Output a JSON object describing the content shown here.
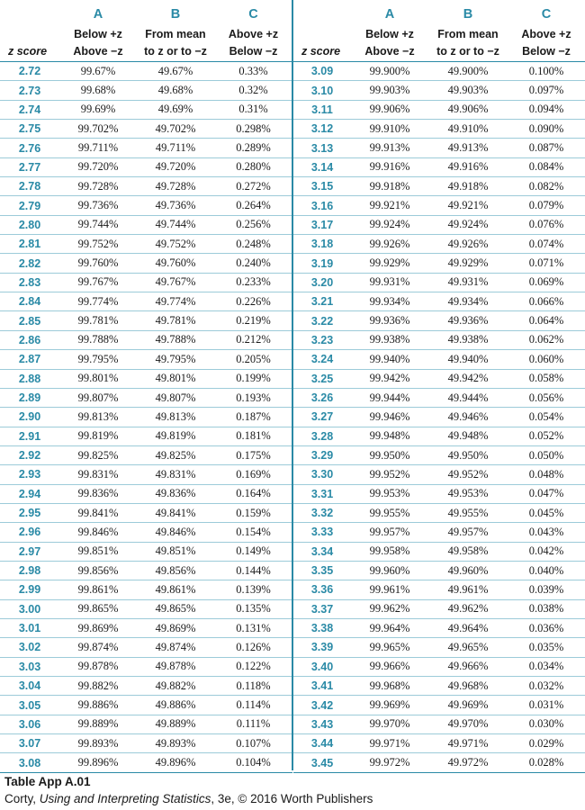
{
  "headers": {
    "z": "z score",
    "A": {
      "letter": "A",
      "line1": "Below +z",
      "line2": "Above −z"
    },
    "B": {
      "letter": "B",
      "line1": "From mean",
      "line2": "to z or to −z"
    },
    "C": {
      "letter": "C",
      "line1": "Above +z",
      "line2": "Below −z"
    }
  },
  "left_rows": [
    [
      "2.72",
      "99.67%",
      "49.67%",
      "0.33%"
    ],
    [
      "2.73",
      "99.68%",
      "49.68%",
      "0.32%"
    ],
    [
      "2.74",
      "99.69%",
      "49.69%",
      "0.31%"
    ],
    [
      "2.75",
      "99.702%",
      "49.702%",
      "0.298%"
    ],
    [
      "2.76",
      "99.711%",
      "49.711%",
      "0.289%"
    ],
    [
      "2.77",
      "99.720%",
      "49.720%",
      "0.280%"
    ],
    [
      "2.78",
      "99.728%",
      "49.728%",
      "0.272%"
    ],
    [
      "2.79",
      "99.736%",
      "49.736%",
      "0.264%"
    ],
    [
      "2.80",
      "99.744%",
      "49.744%",
      "0.256%"
    ],
    [
      "2.81",
      "99.752%",
      "49.752%",
      "0.248%"
    ],
    [
      "2.82",
      "99.760%",
      "49.760%",
      "0.240%"
    ],
    [
      "2.83",
      "99.767%",
      "49.767%",
      "0.233%"
    ],
    [
      "2.84",
      "99.774%",
      "49.774%",
      "0.226%"
    ],
    [
      "2.85",
      "99.781%",
      "49.781%",
      "0.219%"
    ],
    [
      "2.86",
      "99.788%",
      "49.788%",
      "0.212%"
    ],
    [
      "2.87",
      "99.795%",
      "49.795%",
      "0.205%"
    ],
    [
      "2.88",
      "99.801%",
      "49.801%",
      "0.199%"
    ],
    [
      "2.89",
      "99.807%",
      "49.807%",
      "0.193%"
    ],
    [
      "2.90",
      "99.813%",
      "49.813%",
      "0.187%"
    ],
    [
      "2.91",
      "99.819%",
      "49.819%",
      "0.181%"
    ],
    [
      "2.92",
      "99.825%",
      "49.825%",
      "0.175%"
    ],
    [
      "2.93",
      "99.831%",
      "49.831%",
      "0.169%"
    ],
    [
      "2.94",
      "99.836%",
      "49.836%",
      "0.164%"
    ],
    [
      "2.95",
      "99.841%",
      "49.841%",
      "0.159%"
    ],
    [
      "2.96",
      "99.846%",
      "49.846%",
      "0.154%"
    ],
    [
      "2.97",
      "99.851%",
      "49.851%",
      "0.149%"
    ],
    [
      "2.98",
      "99.856%",
      "49.856%",
      "0.144%"
    ],
    [
      "2.99",
      "99.861%",
      "49.861%",
      "0.139%"
    ],
    [
      "3.00",
      "99.865%",
      "49.865%",
      "0.135%"
    ],
    [
      "3.01",
      "99.869%",
      "49.869%",
      "0.131%"
    ],
    [
      "3.02",
      "99.874%",
      "49.874%",
      "0.126%"
    ],
    [
      "3.03",
      "99.878%",
      "49.878%",
      "0.122%"
    ],
    [
      "3.04",
      "99.882%",
      "49.882%",
      "0.118%"
    ],
    [
      "3.05",
      "99.886%",
      "49.886%",
      "0.114%"
    ],
    [
      "3.06",
      "99.889%",
      "49.889%",
      "0.111%"
    ],
    [
      "3.07",
      "99.893%",
      "49.893%",
      "0.107%"
    ],
    [
      "3.08",
      "99.896%",
      "49.896%",
      "0.104%"
    ]
  ],
  "right_rows": [
    [
      "3.09",
      "99.900%",
      "49.900%",
      "0.100%"
    ],
    [
      "3.10",
      "99.903%",
      "49.903%",
      "0.097%"
    ],
    [
      "3.11",
      "99.906%",
      "49.906%",
      "0.094%"
    ],
    [
      "3.12",
      "99.910%",
      "49.910%",
      "0.090%"
    ],
    [
      "3.13",
      "99.913%",
      "49.913%",
      "0.087%"
    ],
    [
      "3.14",
      "99.916%",
      "49.916%",
      "0.084%"
    ],
    [
      "3.15",
      "99.918%",
      "49.918%",
      "0.082%"
    ],
    [
      "3.16",
      "99.921%",
      "49.921%",
      "0.079%"
    ],
    [
      "3.17",
      "99.924%",
      "49.924%",
      "0.076%"
    ],
    [
      "3.18",
      "99.926%",
      "49.926%",
      "0.074%"
    ],
    [
      "3.19",
      "99.929%",
      "49.929%",
      "0.071%"
    ],
    [
      "3.20",
      "99.931%",
      "49.931%",
      "0.069%"
    ],
    [
      "3.21",
      "99.934%",
      "49.934%",
      "0.066%"
    ],
    [
      "3.22",
      "99.936%",
      "49.936%",
      "0.064%"
    ],
    [
      "3.23",
      "99.938%",
      "49.938%",
      "0.062%"
    ],
    [
      "3.24",
      "99.940%",
      "49.940%",
      "0.060%"
    ],
    [
      "3.25",
      "99.942%",
      "49.942%",
      "0.058%"
    ],
    [
      "3.26",
      "99.944%",
      "49.944%",
      "0.056%"
    ],
    [
      "3.27",
      "99.946%",
      "49.946%",
      "0.054%"
    ],
    [
      "3.28",
      "99.948%",
      "49.948%",
      "0.052%"
    ],
    [
      "3.29",
      "99.950%",
      "49.950%",
      "0.050%"
    ],
    [
      "3.30",
      "99.952%",
      "49.952%",
      "0.048%"
    ],
    [
      "3.31",
      "99.953%",
      "49.953%",
      "0.047%"
    ],
    [
      "3.32",
      "99.955%",
      "49.955%",
      "0.045%"
    ],
    [
      "3.33",
      "99.957%",
      "49.957%",
      "0.043%"
    ],
    [
      "3.34",
      "99.958%",
      "49.958%",
      "0.042%"
    ],
    [
      "3.35",
      "99.960%",
      "49.960%",
      "0.040%"
    ],
    [
      "3.36",
      "99.961%",
      "49.961%",
      "0.039%"
    ],
    [
      "3.37",
      "99.962%",
      "49.962%",
      "0.038%"
    ],
    [
      "3.38",
      "99.964%",
      "49.964%",
      "0.036%"
    ],
    [
      "3.39",
      "99.965%",
      "49.965%",
      "0.035%"
    ],
    [
      "3.40",
      "99.966%",
      "49.966%",
      "0.034%"
    ],
    [
      "3.41",
      "99.968%",
      "49.968%",
      "0.032%"
    ],
    [
      "3.42",
      "99.969%",
      "49.969%",
      "0.031%"
    ],
    [
      "3.43",
      "99.970%",
      "49.970%",
      "0.030%"
    ],
    [
      "3.44",
      "99.971%",
      "49.971%",
      "0.029%"
    ],
    [
      "3.45",
      "99.972%",
      "49.972%",
      "0.028%"
    ]
  ],
  "caption": "Table App A.01",
  "credit": {
    "author": "Corty, ",
    "book_title": "Using and Interpreting Statistics",
    "rest": ", 3e, © 2016 Worth Publishers"
  },
  "colors": {
    "accent": "#2a8aa6",
    "text": "#1a1a1a"
  }
}
